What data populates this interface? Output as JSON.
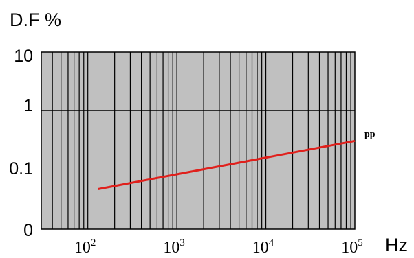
{
  "chart_data": {
    "type": "line",
    "ylabel": "D.F %",
    "xlabel": "Hz",
    "x_scale": "log",
    "x_range": [
      30,
      100000
    ],
    "y_ticks": [
      {
        "label": "10"
      },
      {
        "label": "1"
      },
      {
        "label": "0.1"
      },
      {
        "label": "0"
      }
    ],
    "x_ticks": [
      {
        "value": 100,
        "base": "10",
        "exp": "2"
      },
      {
        "value": 1000,
        "base": "10",
        "exp": "3"
      },
      {
        "value": 10000,
        "base": "10",
        "exp": "4"
      },
      {
        "value": 100000,
        "base": "10",
        "exp": "5"
      }
    ],
    "series": [
      {
        "name": "pp",
        "color": "#e0201c",
        "x": [
          130,
          100000
        ],
        "y": [
          0.045,
          0.3
        ]
      }
    ],
    "grid": true,
    "plot_background": "#c0c0c0"
  }
}
